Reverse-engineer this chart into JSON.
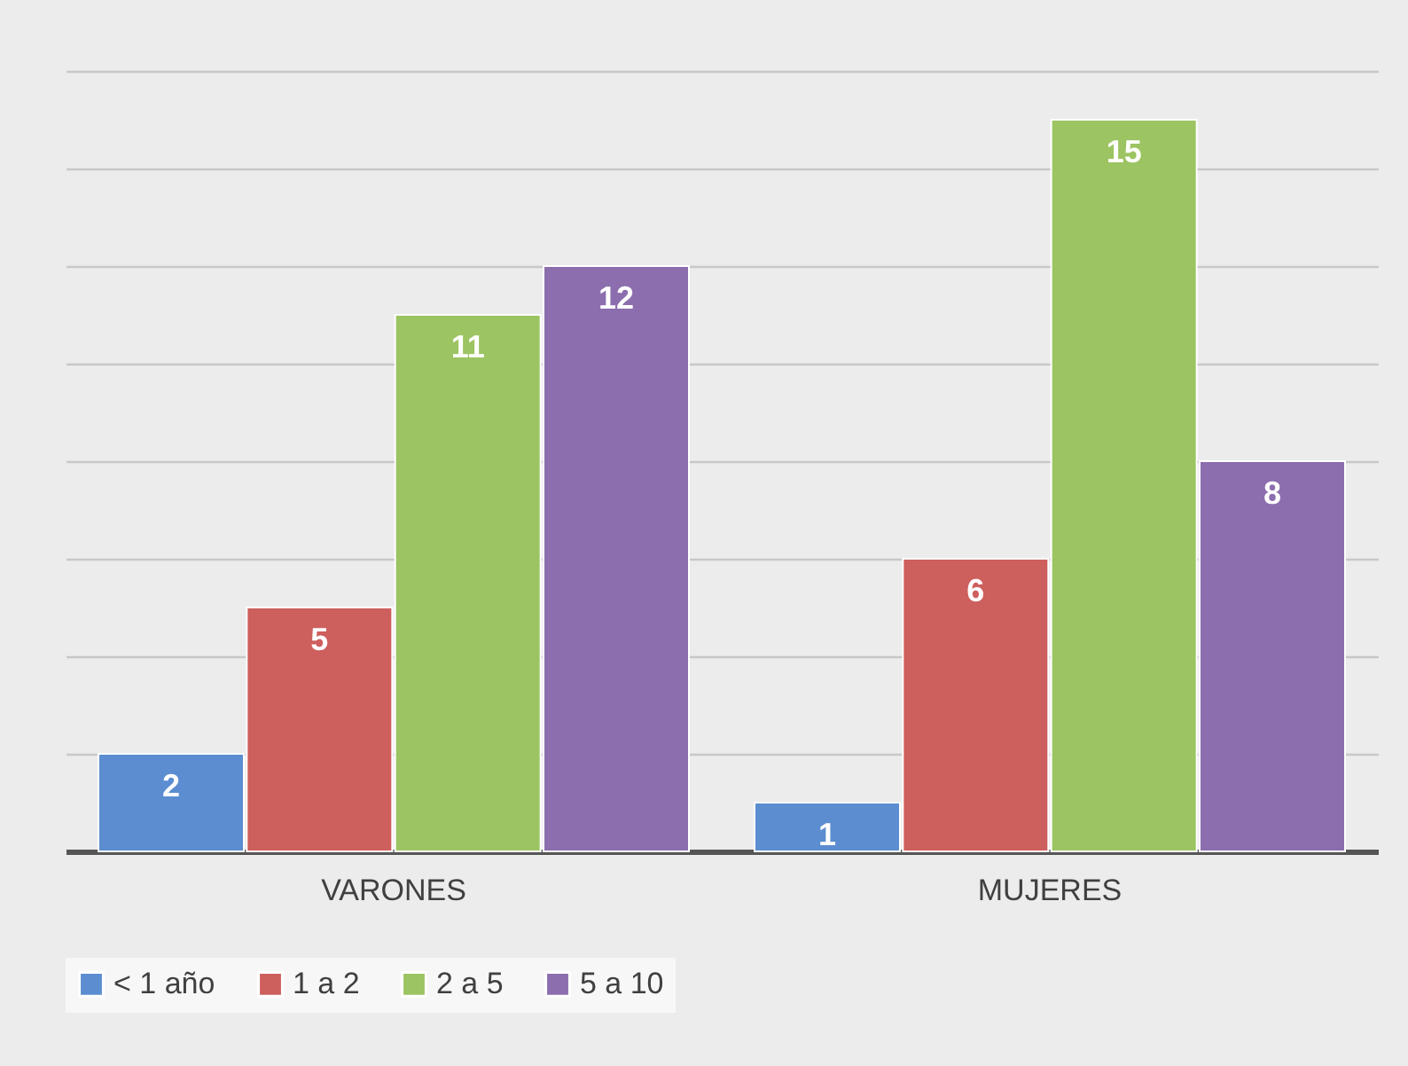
{
  "chart_data": {
    "type": "bar",
    "categories": [
      "VARONES",
      "MUJERES"
    ],
    "series": [
      {
        "name": "< 1 año",
        "color": "#5b8dd0",
        "values": [
          2,
          1
        ]
      },
      {
        "name": "1 a 2",
        "color": "#cd5f5d",
        "values": [
          5,
          6
        ]
      },
      {
        "name": "2 a 5",
        "color": "#9cc462",
        "values": [
          11,
          15
        ]
      },
      {
        "name": "5 a 10",
        "color": "#8c6eae",
        "values": [
          12,
          8
        ]
      }
    ],
    "ylim": [
      0,
      16
    ],
    "yticks": [
      0,
      2,
      4,
      6,
      8,
      10,
      12,
      14,
      16
    ],
    "grid": "y",
    "tick_labels": "x",
    "legend": "bottom",
    "data_labels": true
  }
}
